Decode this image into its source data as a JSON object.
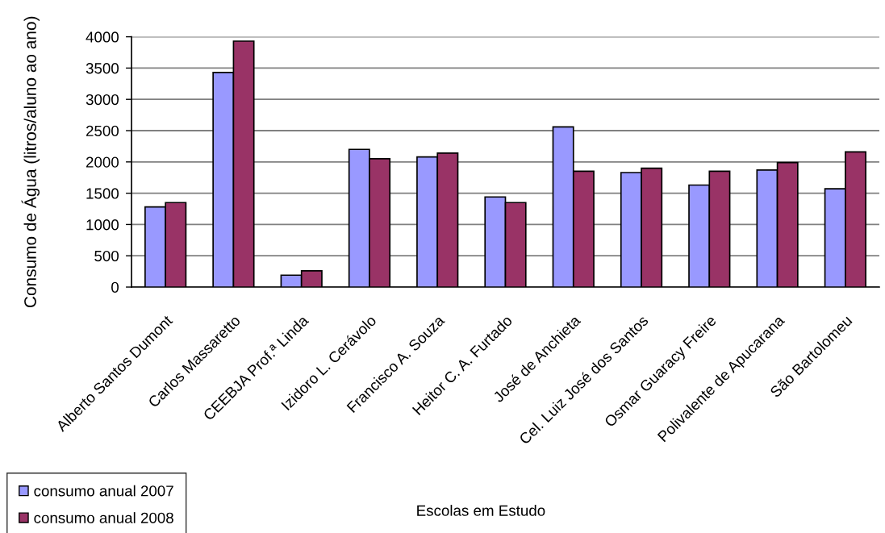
{
  "chart_data": {
    "type": "bar",
    "xlabel": "Escolas em Estudo",
    "ylabel": "Consumo de Água (litros/aluno ao ano)",
    "categories": [
      "Alberto Santos Dumont",
      "Carlos Massaretto",
      "CEEBJA Prof.ª Linda",
      "Izidoro L. Cerávolo",
      "Francisco A. Souza",
      "Heitor C. A. Furtado",
      "José de Anchieta",
      "Cel. Luiz José dos Santos",
      "Osmar Guaracy Freire",
      "Polivalente de Apucarana",
      "São Bartolomeu"
    ],
    "series": [
      {
        "name": "consumo anual 2007",
        "color": "#9999ff",
        "values": [
          1280,
          3430,
          190,
          2200,
          2080,
          1440,
          2560,
          1830,
          1630,
          1870,
          1570
        ]
      },
      {
        "name": "consumo anual 2008",
        "color": "#993366",
        "values": [
          1350,
          3930,
          260,
          2050,
          2140,
          1350,
          1850,
          1900,
          1850,
          1990,
          2160
        ]
      }
    ],
    "ylim": [
      0,
      4000
    ],
    "yticks": [
      0,
      500,
      1000,
      1500,
      2000,
      2500,
      3000,
      3500,
      4000
    ],
    "grid": "y",
    "legend": "bottom left"
  }
}
